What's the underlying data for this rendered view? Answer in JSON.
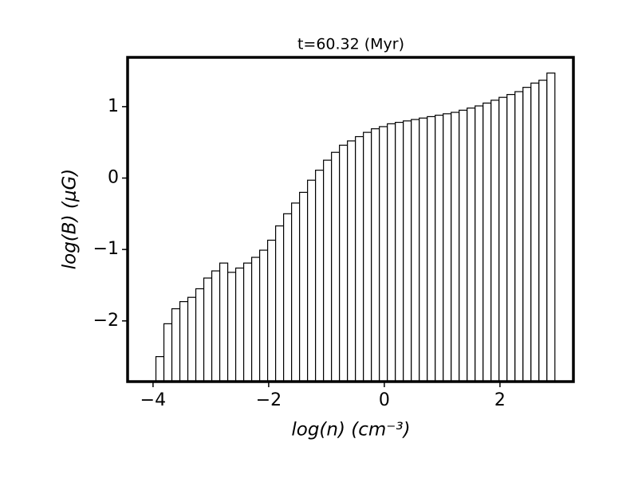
{
  "chart_data": {
    "type": "histogram",
    "title": "t=60.32 (Myr)",
    "xlabel": "log(n) (cm⁻³)",
    "ylabel": "log(B) (μG)",
    "bins": [
      -3.95,
      -3.812,
      -3.674,
      -3.536,
      -3.398,
      -3.26,
      -3.122,
      -2.984,
      -2.846,
      -2.708,
      -2.57,
      -2.432,
      -2.294,
      -2.156,
      -2.018,
      -1.88,
      -1.742,
      -1.604,
      -1.466,
      -1.328,
      -1.19,
      -1.052,
      -0.914,
      -0.776,
      -0.638,
      -0.5,
      -0.362,
      -0.224,
      -0.086,
      0.052,
      0.19,
      0.328,
      0.466,
      0.604,
      0.742,
      0.88,
      1.018,
      1.156,
      1.294,
      1.432,
      1.57,
      1.708,
      1.846,
      1.984,
      2.122,
      2.26,
      2.398,
      2.536,
      2.674,
      2.812,
      2.95
    ],
    "values": [
      -2.5,
      -2.04,
      -1.83,
      -1.73,
      -1.67,
      -1.55,
      -1.4,
      -1.3,
      -1.19,
      -1.32,
      -1.26,
      -1.19,
      -1.11,
      -1.01,
      -0.87,
      -0.67,
      -0.5,
      -0.35,
      -0.2,
      -0.03,
      0.11,
      0.25,
      0.36,
      0.46,
      0.52,
      0.58,
      0.64,
      0.69,
      0.72,
      0.76,
      0.78,
      0.8,
      0.82,
      0.84,
      0.86,
      0.88,
      0.9,
      0.92,
      0.95,
      0.98,
      1.01,
      1.05,
      1.09,
      1.13,
      1.17,
      1.21,
      1.27,
      1.33,
      1.37,
      1.47
    ],
    "color": "#ffffff",
    "edgecolor": "#000000",
    "xlim": [
      -4.44,
      3.27
    ],
    "ylim": [
      -2.85,
      1.69
    ],
    "xticks": [
      {
        "value": -4,
        "label": "−4"
      },
      {
        "value": -2,
        "label": "−2"
      },
      0,
      2
    ],
    "yticks": [
      {
        "value": -2,
        "label": "−2"
      },
      {
        "value": -1,
        "label": "−1"
      },
      0,
      1
    ]
  }
}
